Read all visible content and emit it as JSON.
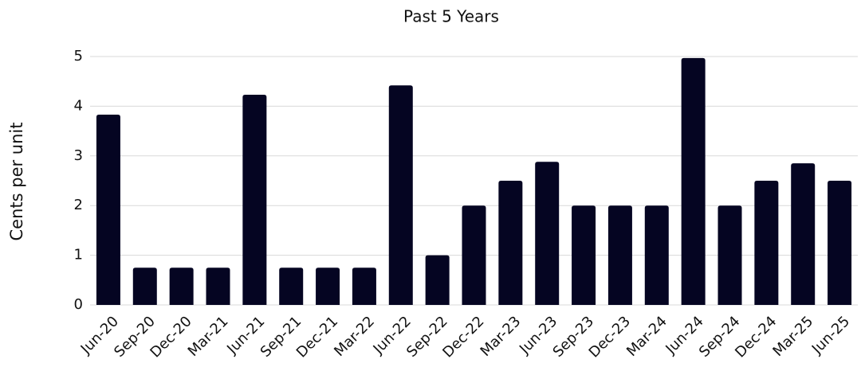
{
  "chart_data": {
    "type": "bar",
    "title": "Past 5 Years",
    "y_label": "Cents per unit",
    "categories": [
      "Jun-20",
      "Sep-20",
      "Dec-20",
      "Mar-21",
      "Jun-21",
      "Sep-21",
      "Dec-21",
      "Mar-22",
      "Jun-22",
      "Sep-22",
      "Dec-22",
      "Mar-23",
      "Jun-23",
      "Sep-23",
      "Dec-23",
      "Mar-24",
      "Jun-24",
      "Sep-24",
      "Dec-24",
      "Mar-25",
      "Jun-25"
    ],
    "values": [
      3.83,
      0.75,
      0.75,
      0.75,
      4.23,
      0.75,
      0.75,
      0.75,
      4.42,
      1.0,
      2.0,
      2.5,
      2.88,
      2.0,
      2.0,
      2.0,
      4.97,
      2.0,
      2.5,
      2.85,
      2.5
    ],
    "color": "#050522",
    "ylim": [
      0,
      5
    ],
    "yticks": [
      0,
      1,
      2,
      3,
      4,
      5
    ],
    "grid": true
  }
}
